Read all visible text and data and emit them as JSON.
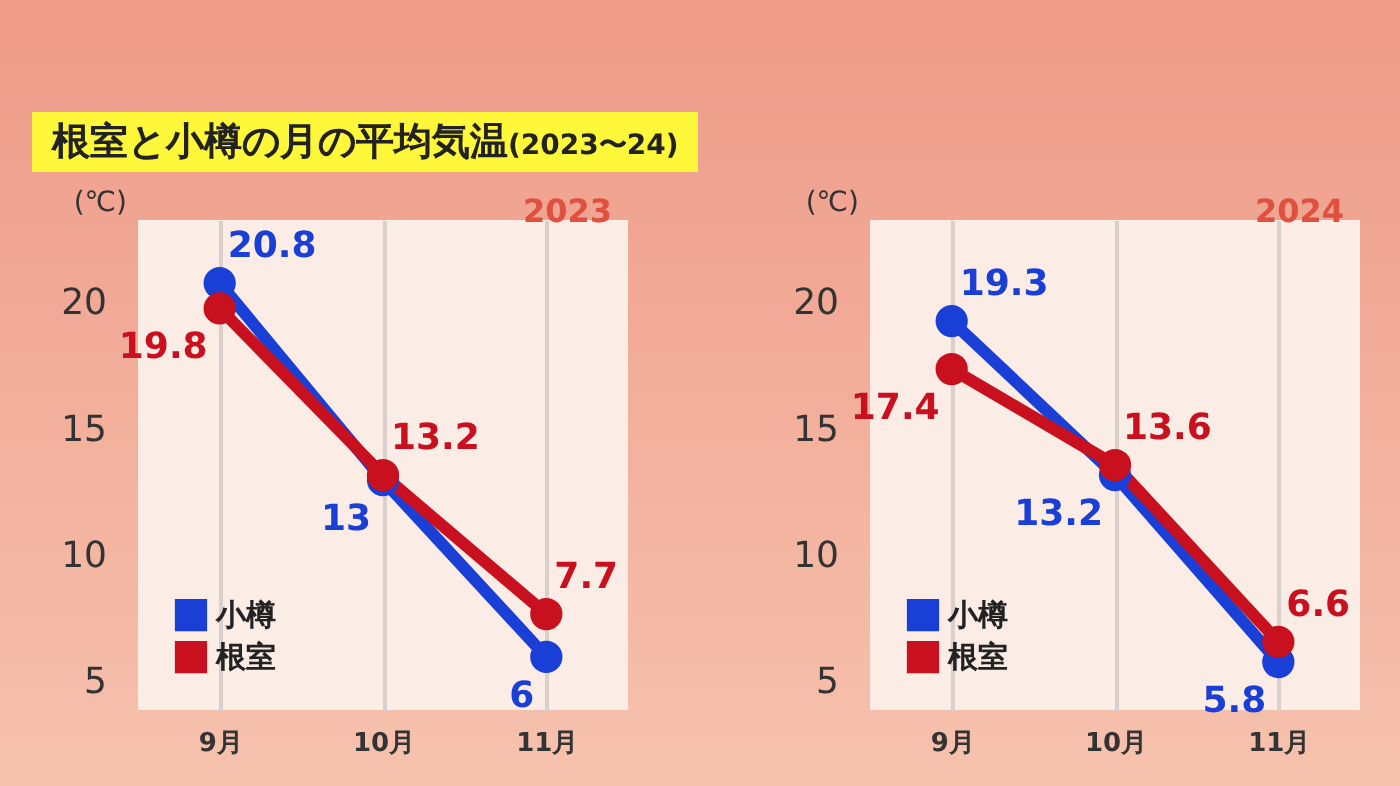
{
  "chart_data": [
    {
      "type": "line",
      "title": "根室と小樽の月の平均気温(2023〜24)",
      "subtitle": "2023",
      "ylabel": "(℃)",
      "categories": [
        "9月",
        "10月",
        "11月"
      ],
      "series": [
        {
          "name": "小樽",
          "color": "#1a3fd6",
          "values": [
            20.8,
            13,
            6
          ]
        },
        {
          "name": "根室",
          "color": "#c8101e",
          "values": [
            19.8,
            13.2,
            7.7
          ]
        }
      ],
      "ylim": [
        3.9,
        23.3
      ],
      "yticks": [
        5,
        10,
        15,
        20
      ],
      "grid": "x",
      "legend": "bottom left",
      "marker": "circle",
      "line_style": "solid",
      "data_labels": true
    },
    {
      "type": "line",
      "subtitle": "2024",
      "ylabel": "(℃)",
      "categories": [
        "9月",
        "10月",
        "11月"
      ],
      "series": [
        {
          "name": "小樽",
          "color": "#1a3fd6",
          "values": [
            19.3,
            13.2,
            5.8
          ]
        },
        {
          "name": "根室",
          "color": "#c8101e",
          "values": [
            17.4,
            13.6,
            6.6
          ]
        }
      ],
      "ylim": [
        3.9,
        23.3
      ],
      "yticks": [
        5,
        10,
        15,
        20
      ],
      "grid": "x",
      "legend": "bottom left",
      "marker": "circle",
      "line_style": "solid",
      "data_labels": true
    }
  ]
}
